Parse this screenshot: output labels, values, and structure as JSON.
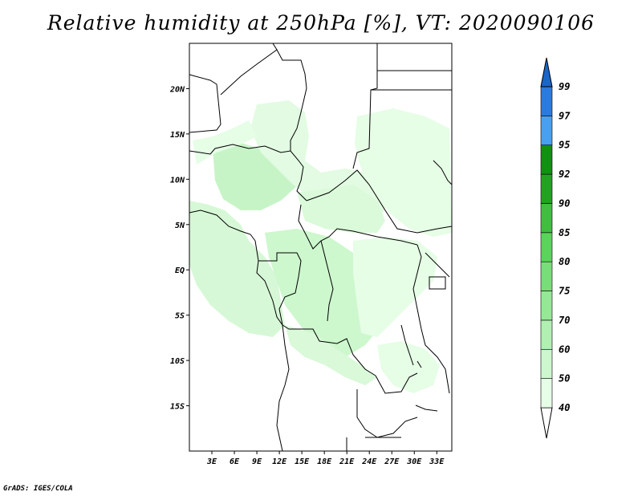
{
  "title": "Relative humidity at 250hPa [%], VT: 2020090106",
  "credit": "GrADS: IGES/COLA",
  "map": {
    "lon_range": [
      0,
      35
    ],
    "lat_range": [
      -20,
      25
    ],
    "lat_ticks": [
      {
        "value": 20,
        "label": "20N"
      },
      {
        "value": 15,
        "label": "15N"
      },
      {
        "value": 10,
        "label": "10N"
      },
      {
        "value": 5,
        "label": "5N"
      },
      {
        "value": 0,
        "label": "EQ"
      },
      {
        "value": -5,
        "label": "5S"
      },
      {
        "value": -10,
        "label": "10S"
      },
      {
        "value": -15,
        "label": "15S"
      }
    ],
    "lon_ticks": [
      {
        "value": 3,
        "label": "3E"
      },
      {
        "value": 6,
        "label": "6E"
      },
      {
        "value": 9,
        "label": "9E"
      },
      {
        "value": 12,
        "label": "12E"
      },
      {
        "value": 15,
        "label": "15E"
      },
      {
        "value": 18,
        "label": "18E"
      },
      {
        "value": 21,
        "label": "21E"
      },
      {
        "value": 24,
        "label": "24E"
      },
      {
        "value": 27,
        "label": "27E"
      },
      {
        "value": 30,
        "label": "30E"
      },
      {
        "value": 33,
        "label": "33E"
      }
    ]
  },
  "colorbar": {
    "levels": [
      "40",
      "50",
      "60",
      "70",
      "75",
      "80",
      "85",
      "90",
      "92",
      "95",
      "97",
      "99"
    ],
    "colors": [
      "#ffffff",
      "#e6fde6",
      "#cdf7cd",
      "#b2efb2",
      "#96e796",
      "#78de78",
      "#5ad45a",
      "#3fbe3f",
      "#21a321",
      "#119111",
      "#48a0f0",
      "#2a7be0",
      "#1866c9"
    ]
  }
}
